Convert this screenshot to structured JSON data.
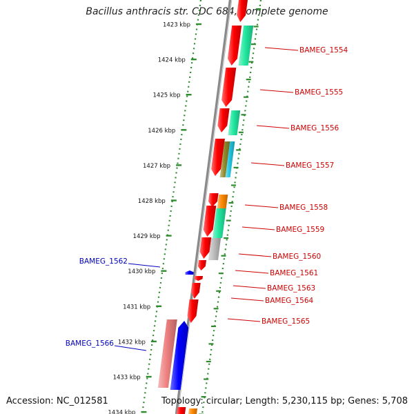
{
  "title": "Bacillus anthracis str. CDC 684, complete genome",
  "accession": "Accession: NC_012581",
  "summary": "Topology: circular; Length: 5,230,115 bp; Genes: 5,708",
  "colors": {
    "ruler_dash": "#2e8b2e",
    "backbone": "#8a8a8a",
    "forward_label": "#cc0000",
    "reverse_label": "#0000bb",
    "gene_red": "#ff0000",
    "gene_green": "#22e8a0",
    "gene_orange": "#ff8800",
    "gene_olive": "#8f8a2a",
    "gene_cyan": "#22c5e0",
    "gene_gray": "#bdbdbd",
    "gene_pink": "#ef8080",
    "gene_blue": "#0000ff"
  },
  "ruler_ticks": [
    "1423 kbp",
    "1424 kbp",
    "1425 kbp",
    "1426 kbp",
    "1427 kbp",
    "1428 kbp",
    "1429 kbp",
    "1430 kbp",
    "1431 kbp",
    "1432 kbp",
    "1433 kbp",
    "1434 kbp"
  ],
  "gene_labels": [
    {
      "name": "BAMEG_1554",
      "strand": "forward"
    },
    {
      "name": "BAMEG_1555",
      "strand": "forward"
    },
    {
      "name": "BAMEG_1556",
      "strand": "forward"
    },
    {
      "name": "BAMEG_1557",
      "strand": "forward"
    },
    {
      "name": "BAMEG_1558",
      "strand": "forward"
    },
    {
      "name": "BAMEG_1559",
      "strand": "forward"
    },
    {
      "name": "BAMEG_1560",
      "strand": "forward"
    },
    {
      "name": "BAMEG_1561",
      "strand": "forward"
    },
    {
      "name": "BAMEG_1563",
      "strand": "forward"
    },
    {
      "name": "BAMEG_1564",
      "strand": "forward"
    },
    {
      "name": "BAMEG_1565",
      "strand": "forward"
    },
    {
      "name": "BAMEG_1562",
      "strand": "reverse"
    },
    {
      "name": "BAMEG_1566",
      "strand": "reverse"
    }
  ]
}
